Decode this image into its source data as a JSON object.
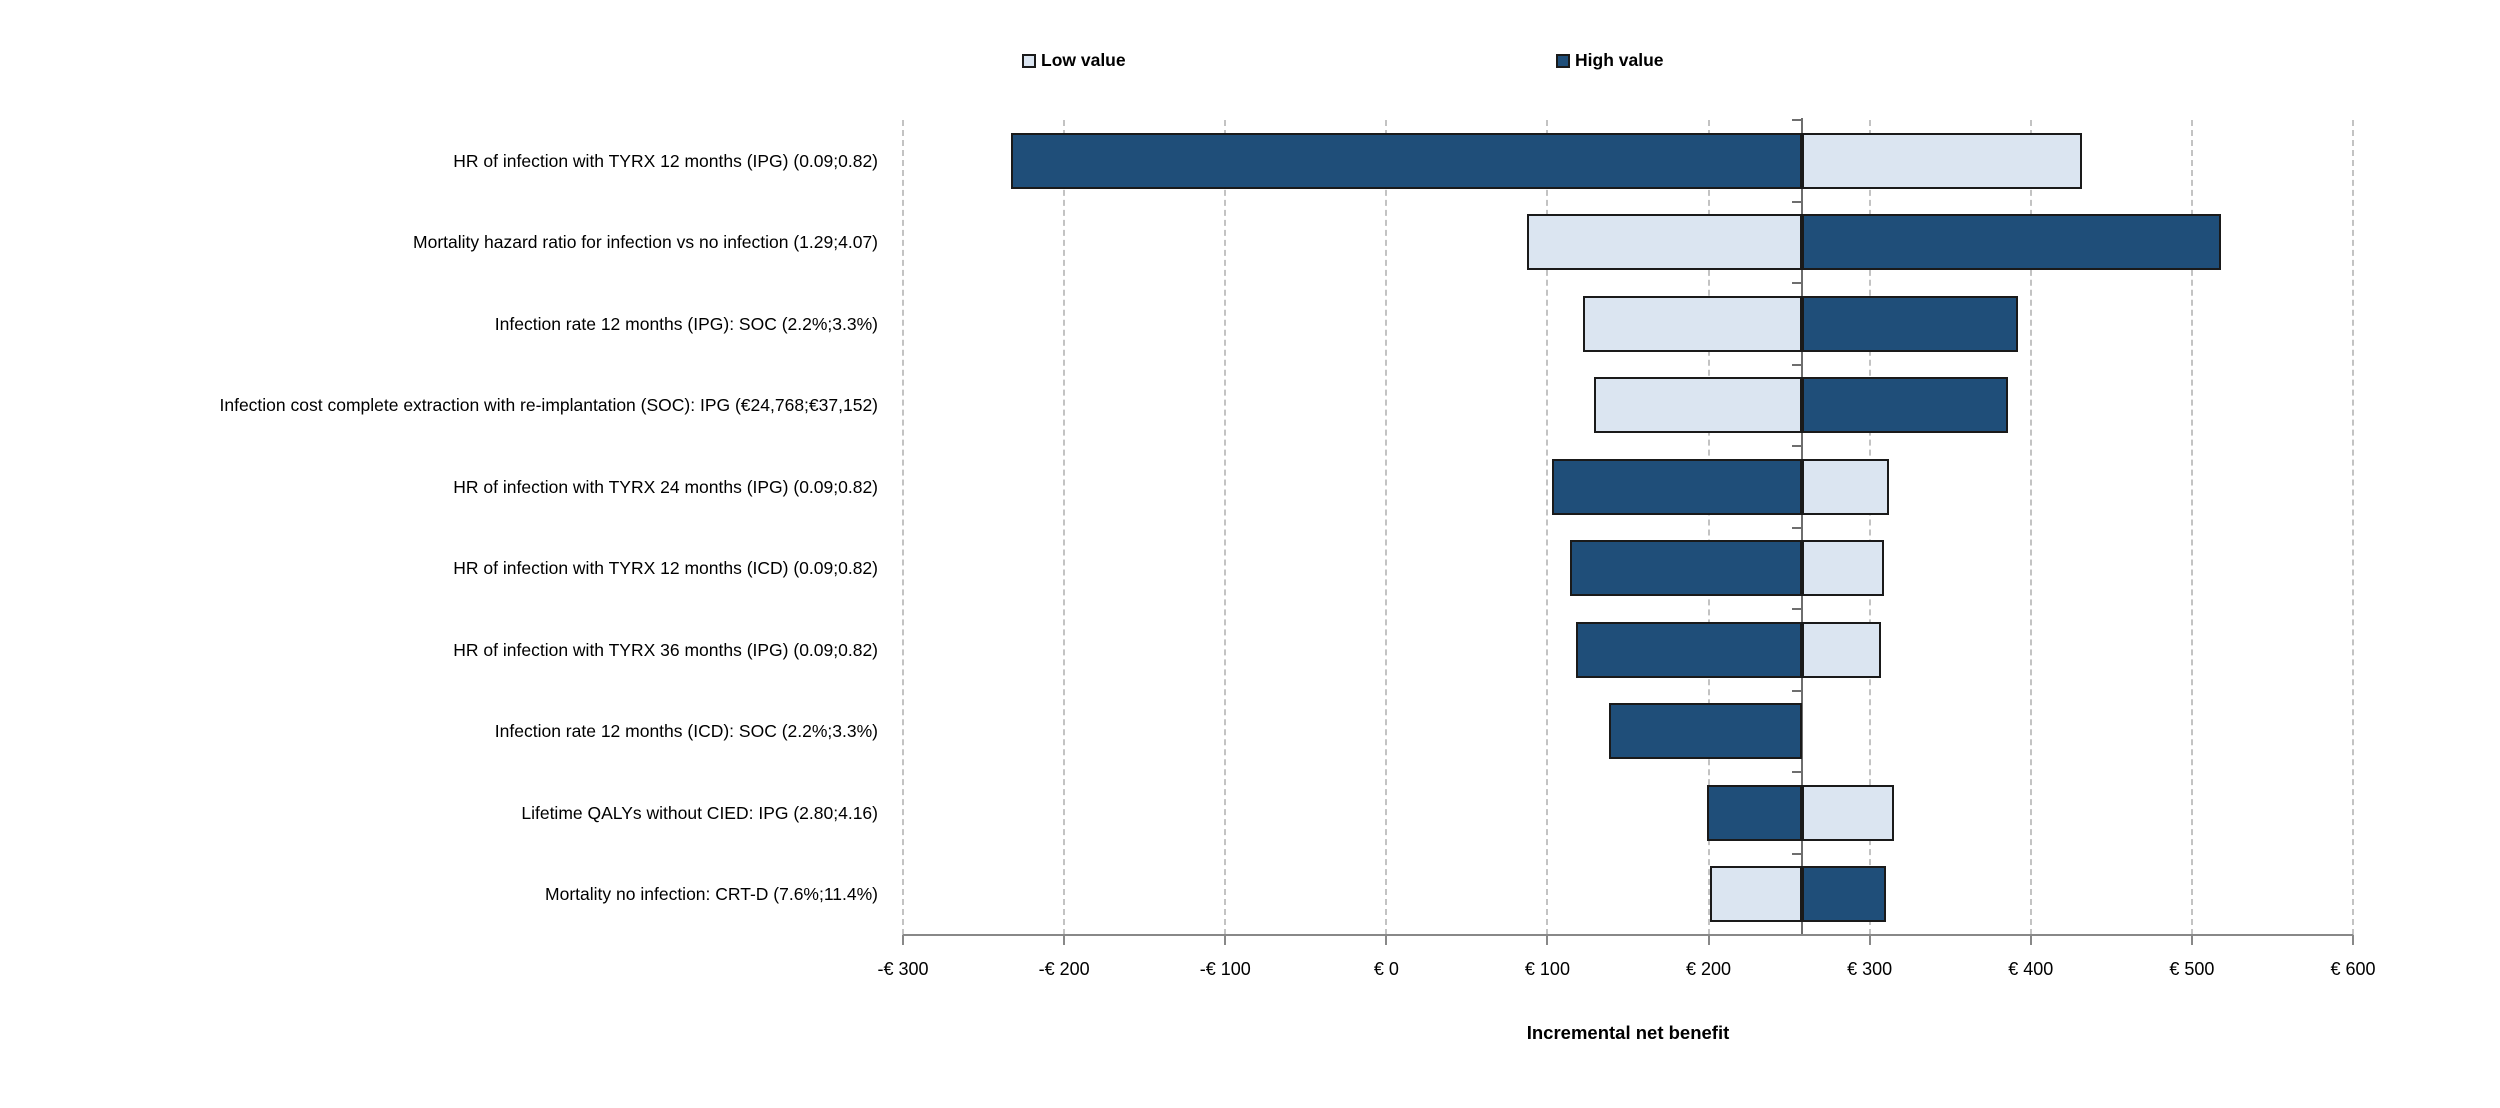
{
  "chart_data": {
    "type": "bar",
    "variant": "tornado",
    "xlabel": "Incremental net benefit",
    "xlim": [
      -300,
      600
    ],
    "x_tick_values": [
      -300,
      -200,
      -100,
      0,
      100,
      200,
      300,
      400,
      500,
      600
    ],
    "x_tick_labels": [
      "-€ 300",
      "-€ 200",
      "-€ 100",
      "€ 0",
      "€ 100",
      "€ 200",
      "€ 300",
      "€ 400",
      "€ 500",
      "€ 600"
    ],
    "base_value": 258,
    "grid": "dashed vertical gridlines every 100",
    "legend_position": "top",
    "legend": [
      {
        "label": "Low value",
        "color": "#dbe5f1"
      },
      {
        "label": "High value",
        "color": "#1f4e79"
      }
    ],
    "categories": [
      "HR of infection with TYRX 12 months (IPG) (0.09;0.82)",
      "Mortality hazard ratio for infection vs no infection (1.29;4.07)",
      "Infection rate 12 months (IPG): SOC (2.2%;3.3%)",
      "Infection cost complete extraction with re-implantation (SOC): IPG (€24,768;€37,152)",
      "HR of infection with TYRX 24 months (IPG) (0.09;0.82)",
      "HR of infection with TYRX 12 months (ICD) (0.09;0.82)",
      "HR of infection with TYRX 36 months (IPG) (0.09;0.82)",
      "Infection rate 12 months (ICD): SOC (2.2%;3.3%)",
      "Lifetime QALYs without CIED: IPG (2.80;4.16)",
      "Mortality no infection: CRT-D (7.6%;11.4%)"
    ],
    "series": [
      {
        "name": "Low value",
        "color": "#dbe5f1",
        "values": [
          432,
          87,
          122,
          129,
          312,
          309,
          307,
          258,
          315,
          201
        ]
      },
      {
        "name": "High value",
        "color": "#1f4e79",
        "values": [
          -233,
          518,
          392,
          386,
          103,
          114,
          118,
          138,
          199,
          310
        ]
      }
    ],
    "colors": {
      "bar_border": "#1a1a1a",
      "gridline": "#c3c3c3",
      "axis": "#888888",
      "pivot_line": "#6e6e6e"
    }
  }
}
